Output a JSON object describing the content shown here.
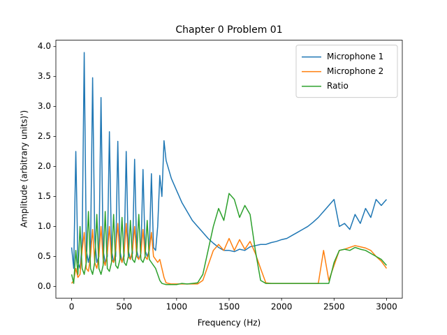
{
  "chart_data": {
    "type": "line",
    "title": "Chapter 0 Problem 01",
    "x_label": "Frequency (Hz)",
    "y_label": "Amplitude (arbitrary units)')",
    "x": [
      0,
      20,
      40,
      60,
      80,
      100,
      120,
      140,
      160,
      180,
      200,
      220,
      240,
      260,
      280,
      300,
      320,
      340,
      360,
      380,
      400,
      420,
      440,
      460,
      480,
      500,
      520,
      540,
      560,
      580,
      600,
      620,
      640,
      660,
      680,
      700,
      720,
      740,
      760,
      780,
      800,
      820,
      840,
      860,
      880,
      900,
      950,
      1000,
      1050,
      1100,
      1150,
      1200,
      1250,
      1300,
      1350,
      1400,
      1450,
      1500,
      1550,
      1600,
      1650,
      1700,
      1750,
      1800,
      1850,
      1900,
      1950,
      2000,
      2050,
      2100,
      2150,
      2200,
      2250,
      2300,
      2350,
      2400,
      2450,
      2500,
      2550,
      2600,
      2650,
      2700,
      2750,
      2800,
      2850,
      2900,
      2950,
      3000
    ],
    "series": [
      {
        "name": "Microphone 1",
        "color": "#1f77b4",
        "values": [
          0.65,
          0.3,
          2.25,
          0.4,
          0.3,
          0.7,
          3.9,
          0.6,
          0.4,
          0.6,
          3.48,
          0.8,
          0.4,
          0.5,
          3.15,
          0.6,
          0.4,
          0.5,
          2.58,
          0.6,
          0.4,
          0.5,
          2.42,
          0.6,
          0.4,
          0.5,
          2.25,
          0.6,
          0.45,
          0.55,
          2.12,
          0.6,
          0.45,
          0.55,
          1.95,
          0.6,
          0.5,
          0.6,
          1.88,
          0.65,
          0.6,
          1.0,
          1.85,
          1.5,
          2.43,
          2.1,
          1.8,
          1.6,
          1.4,
          1.25,
          1.1,
          1.0,
          0.9,
          0.8,
          0.72,
          0.65,
          0.6,
          0.6,
          0.58,
          0.62,
          0.6,
          0.66,
          0.68,
          0.7,
          0.7,
          0.73,
          0.75,
          0.78,
          0.8,
          0.85,
          0.9,
          0.95,
          1.0,
          1.07,
          1.15,
          1.25,
          1.35,
          1.45,
          1.0,
          1.05,
          0.95,
          1.2,
          1.05,
          1.3,
          1.15,
          1.45,
          1.35,
          1.45
        ]
      },
      {
        "name": "Microphone 2",
        "color": "#ff7f0e",
        "values": [
          0.05,
          0.1,
          0.3,
          0.15,
          0.2,
          0.6,
          0.9,
          0.3,
          0.25,
          0.5,
          0.95,
          0.4,
          0.3,
          0.5,
          1.0,
          0.45,
          0.35,
          0.55,
          1.0,
          0.45,
          0.4,
          0.6,
          1.05,
          0.5,
          0.4,
          0.55,
          1.05,
          0.5,
          0.45,
          0.6,
          1.0,
          0.5,
          0.45,
          0.55,
          0.95,
          0.5,
          0.45,
          0.6,
          0.9,
          0.5,
          0.45,
          0.4,
          0.45,
          0.3,
          0.15,
          0.06,
          0.04,
          0.04,
          0.04,
          0.04,
          0.04,
          0.04,
          0.1,
          0.35,
          0.6,
          0.7,
          0.6,
          0.8,
          0.6,
          0.78,
          0.62,
          0.75,
          0.55,
          0.3,
          0.06,
          0.05,
          0.05,
          0.05,
          0.05,
          0.05,
          0.05,
          0.05,
          0.05,
          0.05,
          0.05,
          0.6,
          0.1,
          0.35,
          0.6,
          0.62,
          0.65,
          0.68,
          0.66,
          0.64,
          0.6,
          0.5,
          0.42,
          0.3
        ]
      },
      {
        "name": "Ratio",
        "color": "#2ca02c",
        "values": [
          0.2,
          0.05,
          0.6,
          0.2,
          1.0,
          0.3,
          0.2,
          0.4,
          1.25,
          0.3,
          0.2,
          0.4,
          1.2,
          0.3,
          0.2,
          0.35,
          1.25,
          0.3,
          0.25,
          0.4,
          1.2,
          0.35,
          0.3,
          0.45,
          1.15,
          0.4,
          0.35,
          0.5,
          1.1,
          0.45,
          0.4,
          0.55,
          1.2,
          0.45,
          0.4,
          0.5,
          1.1,
          0.45,
          0.4,
          0.35,
          0.3,
          0.2,
          0.1,
          0.05,
          0.04,
          0.03,
          0.03,
          0.03,
          0.05,
          0.04,
          0.05,
          0.06,
          0.2,
          0.6,
          1.0,
          1.3,
          1.1,
          1.55,
          1.45,
          1.15,
          1.35,
          1.2,
          0.6,
          0.1,
          0.05,
          0.05,
          0.05,
          0.05,
          0.05,
          0.05,
          0.05,
          0.05,
          0.05,
          0.05,
          0.05,
          0.05,
          0.05,
          0.4,
          0.6,
          0.62,
          0.6,
          0.65,
          0.62,
          0.6,
          0.55,
          0.5,
          0.45,
          0.35
        ]
      }
    ],
    "xlim": [
      -150,
      3150
    ],
    "ylim": [
      -0.196,
      4.106
    ],
    "xticks": [
      0,
      500,
      1000,
      1500,
      2000,
      2500,
      3000
    ],
    "yticks": [
      {
        "value": 0,
        "label": "0.0"
      },
      0.5,
      {
        "value": 1,
        "label": "1.0"
      },
      1.5,
      {
        "value": 2,
        "label": "2.0"
      },
      2.5,
      {
        "value": 3,
        "label": "3.0"
      },
      3.5,
      {
        "value": 4,
        "label": "4.0"
      }
    ],
    "legend": "upper right",
    "grid": false
  }
}
